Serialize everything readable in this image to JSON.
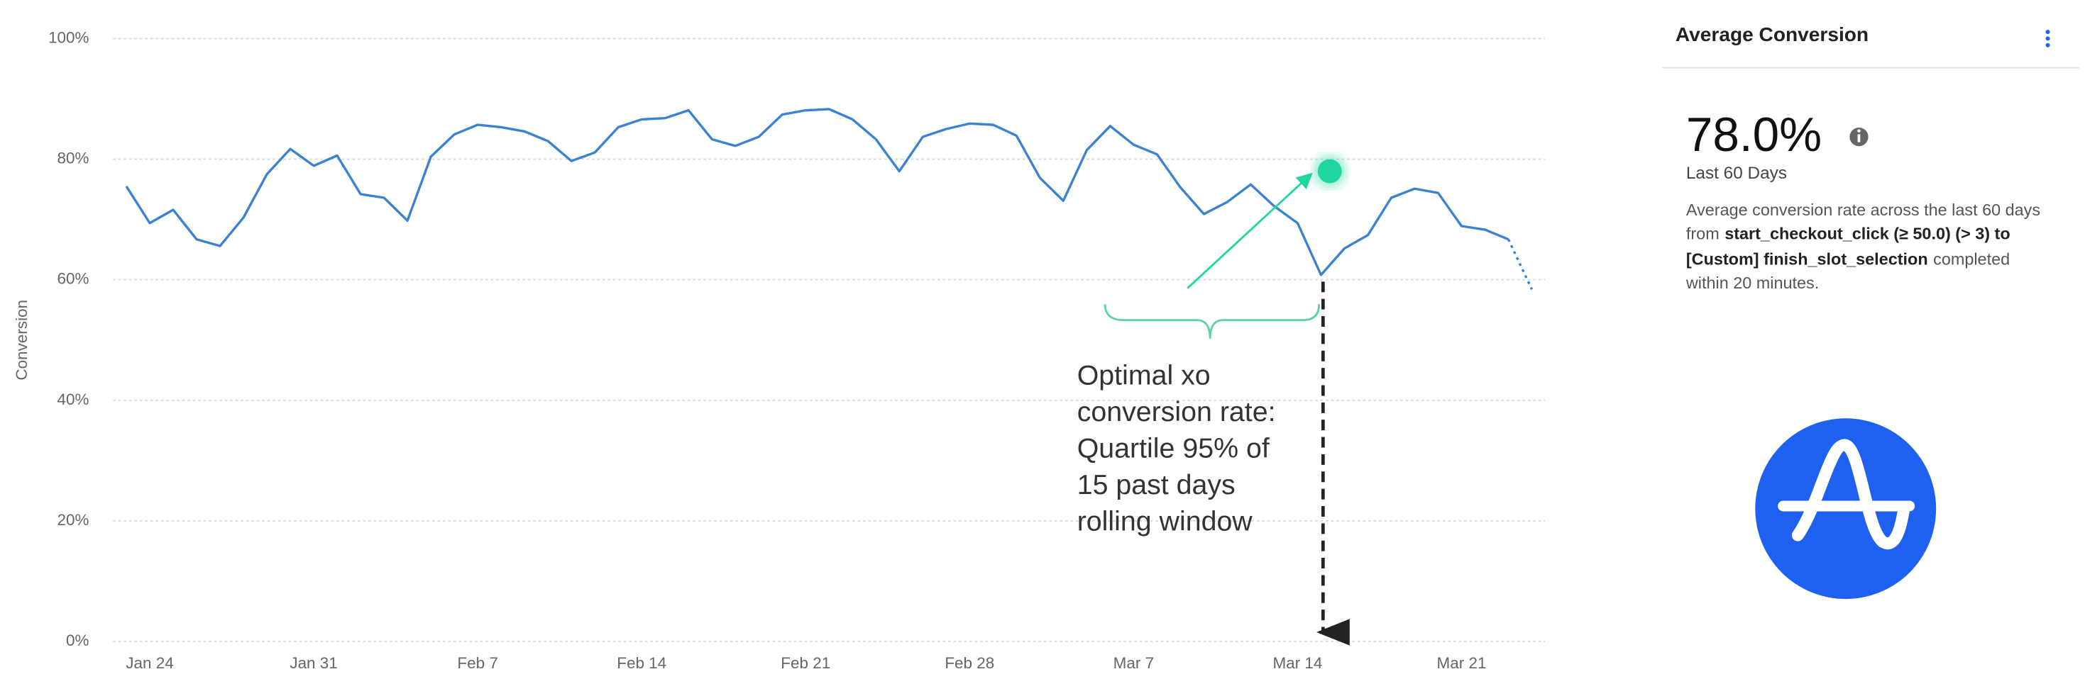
{
  "chart_data": {
    "type": "line",
    "y_label": "Conversion",
    "categories": [
      null,
      "Jan 24",
      null,
      null,
      null,
      null,
      null,
      null,
      "Jan 31",
      null,
      null,
      null,
      null,
      null,
      null,
      "Feb 7",
      null,
      null,
      null,
      null,
      null,
      null,
      "Feb 14",
      null,
      null,
      null,
      null,
      null,
      null,
      "Feb 21",
      null,
      null,
      null,
      null,
      null,
      null,
      "Feb 28",
      null,
      null,
      null,
      null,
      null,
      null,
      "Mar 7",
      null,
      null,
      null,
      null,
      null,
      null,
      "Mar 14",
      null,
      null,
      null,
      null,
      null,
      null,
      "Mar 21",
      null,
      null,
      null
    ],
    "series": [
      {
        "color": "#3b82d0",
        "values": [
          75.5,
          69.4,
          71.6,
          66.7,
          65.6,
          70.3,
          77.5,
          81.7,
          78.9,
          80.6,
          74.2,
          73.6,
          69.8,
          80.4,
          84.1,
          85.7,
          85.3,
          84.6,
          83.0,
          79.7,
          81.1,
          85.3,
          86.6,
          86.8,
          88.1,
          83.3,
          82.2,
          83.7,
          87.4,
          88.1,
          88.3,
          86.6,
          83.3,
          78.0,
          83.7,
          85.0,
          85.9,
          85.7,
          83.9,
          76.9,
          73.1,
          81.5,
          85.5,
          82.4,
          80.8,
          75.3,
          70.9,
          72.9,
          75.8,
          72.2,
          69.4,
          60.8,
          65.2,
          67.4,
          73.6,
          75.1,
          74.4,
          68.9,
          68.3,
          66.7,
          58.4
        ]
      }
    ],
    "ylim": [
      0,
      100
    ],
    "yticks": [
      {
        "value": 0,
        "label": "0%"
      },
      {
        "value": 20,
        "label": "20%"
      },
      {
        "value": 40,
        "label": "40%"
      },
      {
        "value": 60,
        "label": "60%"
      },
      {
        "value": 80,
        "label": "80%"
      },
      {
        "value": 100,
        "label": "100%"
      }
    ],
    "grid": true,
    "target": {
      "value": 78,
      "color": "#1ed6a0"
    },
    "annotation": [
      "Optimal xo",
      "conversion rate:",
      "Quartile 95% of",
      "15 past days",
      "rolling window"
    ]
  },
  "panel": {
    "title": "Average Conversion",
    "value": "78.0%",
    "period": "Last 60 Days",
    "description": [
      "Average conversion rate across the last 60 days",
      "from",
      "start_checkout_click (≥ 50.0) (> 3) to",
      "[Custom] finish_slot_selection",
      "completed",
      "within 20 minutes."
    ]
  }
}
